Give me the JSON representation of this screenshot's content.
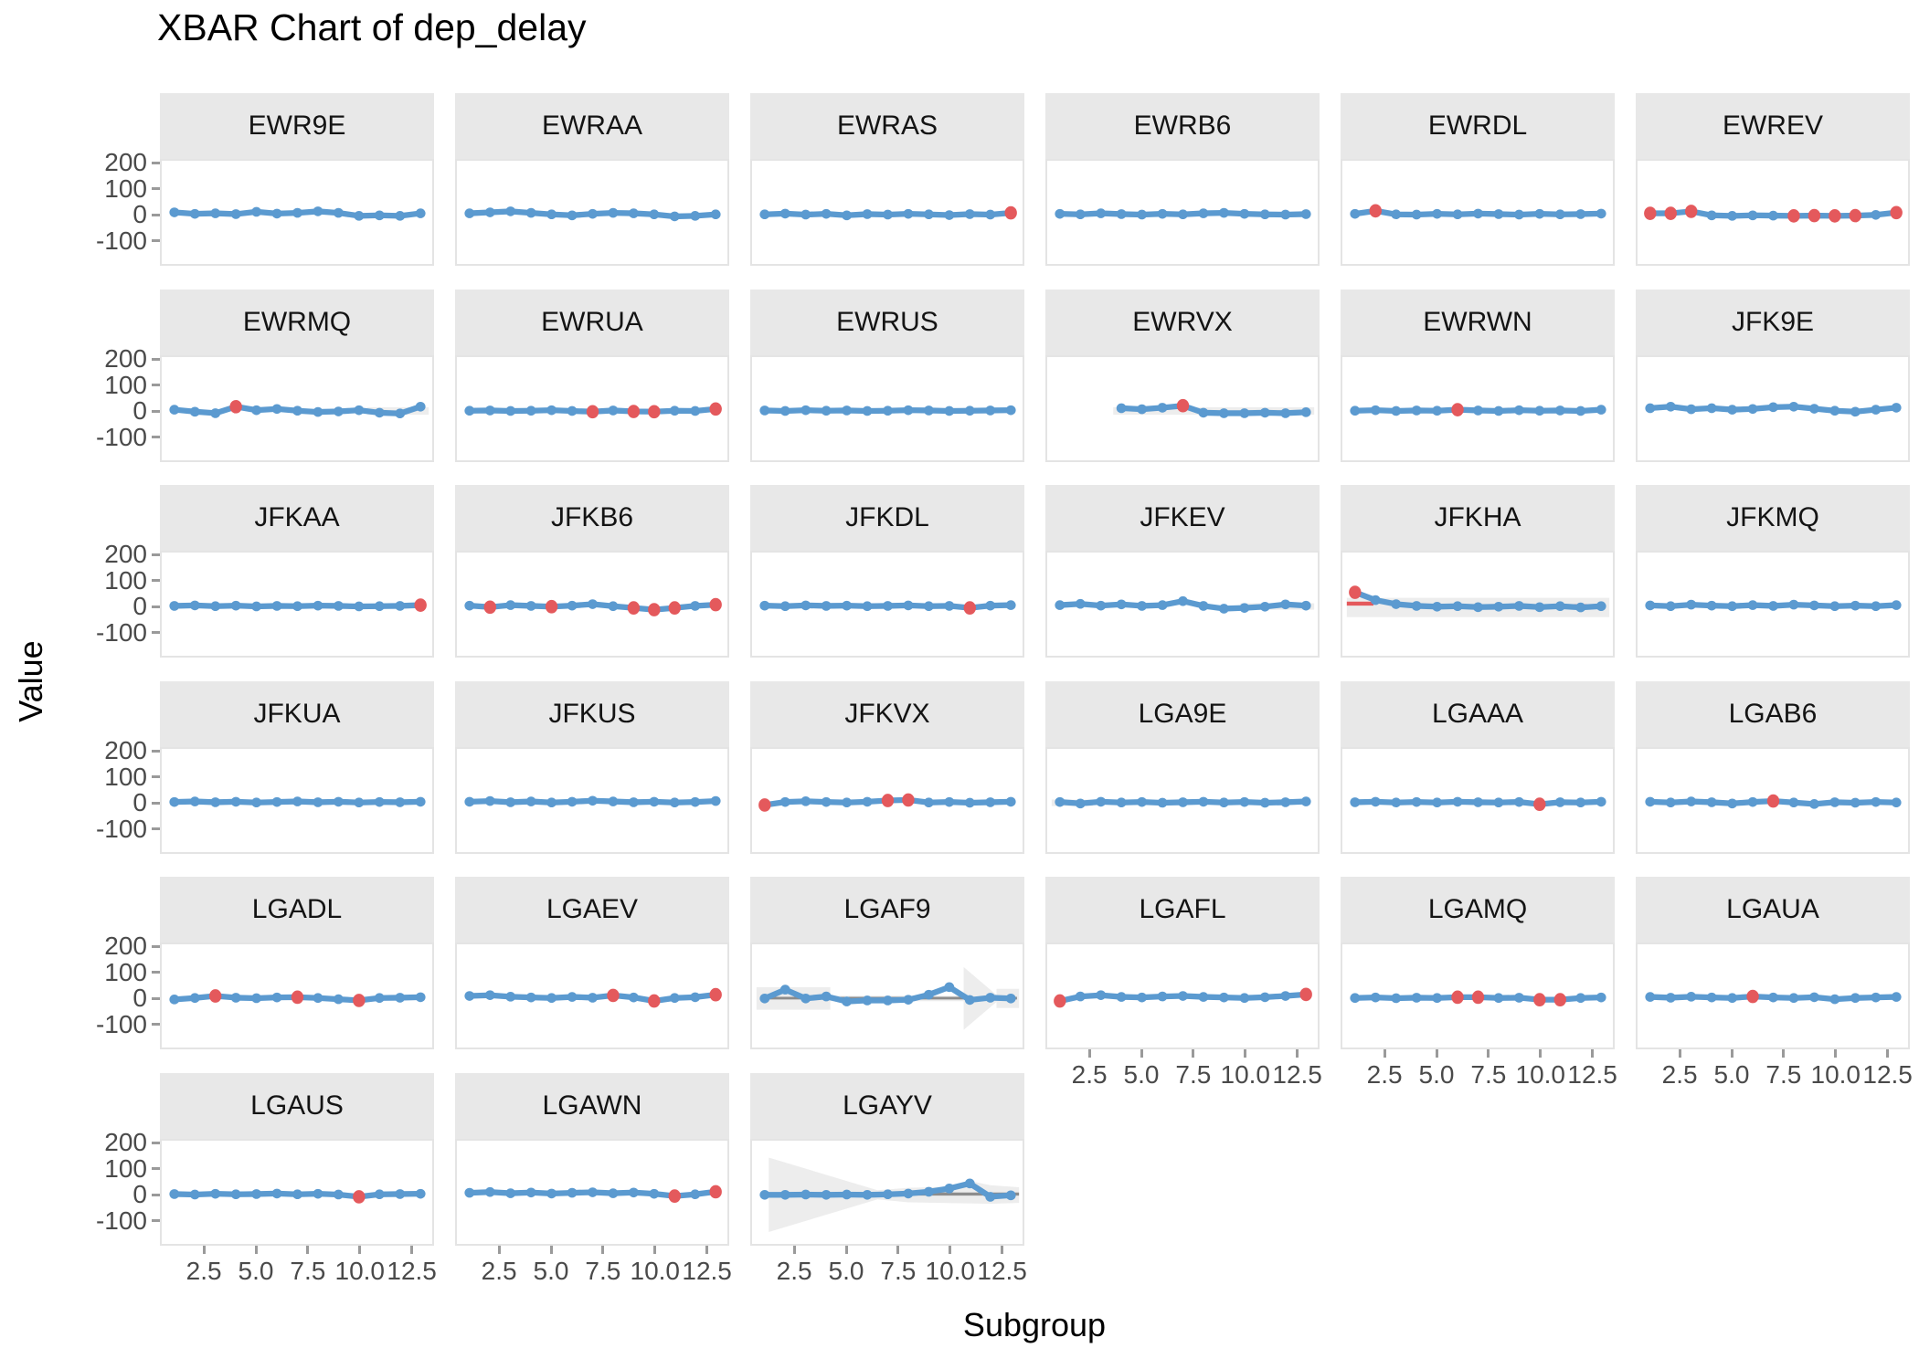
{
  "title": "XBAR Chart of dep_delay",
  "colors": {
    "series_line": "#5B9AD0",
    "point": "#5B9AD0",
    "violation_point": "#E4595C",
    "control_band": "#EDEDED",
    "center_line": "#8C8C8C",
    "strip_bg": "#E8E8E8",
    "panel_border": "#E4E4E4",
    "axis_text": "#4A4A4A",
    "tick_mark": "#9A9A9A"
  },
  "chart_data": {
    "type": "line",
    "title": "XBAR Chart of dep_delay",
    "xlabel": "Subgroup",
    "ylabel": "Value",
    "x_ticks": [
      2.5,
      5.0,
      7.5,
      10.0,
      12.5
    ],
    "y_ticks": [
      200,
      100,
      0,
      -100
    ],
    "xlim": [
      0.4,
      13.6
    ],
    "ylim": [
      -195,
      215
    ],
    "grid": "off",
    "legend": "none",
    "facet_layout": {
      "ncol": 6,
      "nrow": 6
    },
    "facets": [
      {
        "label": "EWR9E",
        "s0": 1,
        "values": [
          10,
          4,
          6,
          3,
          12,
          5,
          8,
          14,
          8,
          -4,
          -2,
          -4,
          6
        ],
        "red": []
      },
      {
        "label": "EWRAA",
        "s0": 1,
        "values": [
          6,
          10,
          14,
          8,
          2,
          -2,
          4,
          8,
          6,
          2,
          -6,
          -4,
          2
        ],
        "red": []
      },
      {
        "label": "EWRAS",
        "s0": 1,
        "values": [
          2,
          5,
          1,
          4,
          -2,
          3,
          1,
          4,
          2,
          -1,
          3,
          1,
          8
        ],
        "red": [
          13
        ]
      },
      {
        "label": "EWRB6",
        "s0": 1,
        "values": [
          4,
          2,
          6,
          3,
          1,
          4,
          2,
          6,
          8,
          4,
          2,
          1,
          3
        ],
        "red": []
      },
      {
        "label": "EWRDL",
        "s0": 1,
        "values": [
          4,
          16,
          2,
          1,
          4,
          2,
          5,
          3,
          1,
          4,
          2,
          3,
          5
        ],
        "red": [
          2
        ]
      },
      {
        "label": "EWREV",
        "s0": 1,
        "values": [
          6,
          6,
          14,
          -2,
          -4,
          -2,
          -3,
          -4,
          -3,
          -4,
          -3,
          0,
          9
        ],
        "red": [
          1,
          2,
          3,
          8,
          9,
          10,
          11,
          13
        ]
      },
      {
        "label": "EWRMQ",
        "s0": 1,
        "values": [
          6,
          -2,
          -8,
          18,
          4,
          9,
          2,
          -3,
          -1,
          4,
          -6,
          -9,
          18
        ],
        "red": [
          4
        ],
        "bands": [
          [
            [
              10.4,
              16
            ],
            [
              13.4,
              16
            ],
            [
              13.4,
              -14
            ],
            [
              10.4,
              -14
            ]
          ]
        ]
      },
      {
        "label": "EWRUA",
        "s0": 1,
        "values": [
          2,
          3,
          1,
          2,
          4,
          1,
          -2,
          3,
          -1,
          -2,
          2,
          1,
          9
        ],
        "red": [
          7,
          9,
          10,
          13
        ]
      },
      {
        "label": "EWRUS",
        "s0": 1,
        "values": [
          3,
          1,
          4,
          2,
          3,
          1,
          2,
          4,
          3,
          1,
          2,
          3,
          4
        ],
        "red": []
      },
      {
        "label": "EWRVX",
        "s0": 4,
        "values": [
          12,
          8,
          14,
          22,
          -6,
          -8,
          -8,
          -6,
          -8,
          -4
        ],
        "red": [
          4
        ],
        "bands": [
          [
            [
              3.6,
              16
            ],
            [
              13.4,
              16
            ],
            [
              13.4,
              -14
            ],
            [
              3.6,
              -14
            ]
          ]
        ]
      },
      {
        "label": "EWRWN",
        "s0": 1,
        "values": [
          2,
          4,
          1,
          3,
          2,
          6,
          3,
          1,
          4,
          2,
          3,
          1,
          6
        ],
        "red": [
          6
        ]
      },
      {
        "label": "JFK9E",
        "s0": 1,
        "values": [
          12,
          18,
          8,
          12,
          6,
          9,
          16,
          18,
          10,
          2,
          -2,
          6,
          14
        ],
        "red": []
      },
      {
        "label": "JFKAA",
        "s0": 1,
        "values": [
          3,
          5,
          2,
          4,
          1,
          3,
          2,
          4,
          3,
          1,
          2,
          3,
          6
        ],
        "red": [
          13
        ]
      },
      {
        "label": "JFKB6",
        "s0": 1,
        "values": [
          4,
          -2,
          6,
          3,
          0,
          4,
          10,
          2,
          -5,
          -12,
          -5,
          3,
          8
        ],
        "red": [
          2,
          5,
          9,
          10,
          11,
          13
        ]
      },
      {
        "label": "JFKDL",
        "s0": 1,
        "values": [
          4,
          2,
          5,
          3,
          4,
          2,
          3,
          5,
          2,
          3,
          -5,
          4,
          6
        ],
        "red": [
          11
        ]
      },
      {
        "label": "JFKEV",
        "s0": 1,
        "values": [
          6,
          11,
          4,
          9,
          3,
          6,
          22,
          3,
          -8,
          -5,
          0,
          9,
          4
        ],
        "red": [],
        "bands": [
          [
            [
              9.8,
              14
            ],
            [
              13.4,
              14
            ],
            [
              13.4,
              -12
            ],
            [
              9.8,
              -12
            ]
          ]
        ]
      },
      {
        "label": "JFKHA",
        "s0": 1,
        "values": [
          57,
          26,
          10,
          3,
          0,
          2,
          -2,
          0,
          3,
          -2,
          2,
          -3,
          2
        ],
        "red": [
          1
        ],
        "bands": [
          [
            [
              0.6,
              35
            ],
            [
              13.4,
              35
            ],
            [
              13.4,
              -42
            ],
            [
              0.6,
              -42
            ]
          ]
        ],
        "lines": [
          {
            "s1": 0.6,
            "s2": 1.9,
            "v": 12,
            "c": "red",
            "w": 4.5
          },
          {
            "s1": 9.4,
            "s2": 12.6,
            "v": 2,
            "c": "red",
            "w": 4.5
          }
        ]
      },
      {
        "label": "JFKMQ",
        "s0": 1,
        "values": [
          5,
          2,
          8,
          4,
          2,
          6,
          3,
          8,
          5,
          2,
          4,
          2,
          6
        ],
        "red": []
      },
      {
        "label": "JFKUA",
        "s0": 1,
        "values": [
          4,
          6,
          3,
          5,
          2,
          4,
          6,
          3,
          5,
          2,
          4,
          3,
          5
        ],
        "red": []
      },
      {
        "label": "JFKUS",
        "s0": 1,
        "values": [
          5,
          8,
          3,
          6,
          2,
          5,
          9,
          6,
          3,
          5,
          2,
          4,
          8
        ],
        "red": []
      },
      {
        "label": "JFKVX",
        "s0": 1,
        "values": [
          -8,
          4,
          7,
          4,
          2,
          5,
          10,
          12,
          2,
          4,
          1,
          3,
          5
        ],
        "red": [
          1,
          7,
          8
        ]
      },
      {
        "label": "LGA9E",
        "s0": 1,
        "values": [
          4,
          -2,
          5,
          2,
          4,
          1,
          3,
          5,
          2,
          4,
          1,
          3,
          6
        ],
        "red": [],
        "bands": [
          [
            [
              0.6,
              14
            ],
            [
              2.6,
              14
            ],
            [
              2.6,
              -12
            ],
            [
              0.6,
              -12
            ]
          ]
        ]
      },
      {
        "label": "LGAAA",
        "s0": 1,
        "values": [
          3,
          5,
          2,
          4,
          2,
          5,
          3,
          2,
          4,
          -5,
          3,
          2,
          5
        ],
        "red": [
          10
        ]
      },
      {
        "label": "LGAB6",
        "s0": 1,
        "values": [
          5,
          2,
          6,
          3,
          -2,
          4,
          8,
          2,
          -4,
          3,
          1,
          4,
          2
        ],
        "red": [
          7
        ]
      },
      {
        "label": "LGADL",
        "s0": 1,
        "values": [
          -4,
          2,
          10,
          3,
          1,
          4,
          5,
          2,
          -3,
          -8,
          2,
          3,
          5
        ],
        "red": [
          3,
          7,
          10
        ]
      },
      {
        "label": "LGAEV",
        "s0": 1,
        "values": [
          10,
          13,
          7,
          4,
          2,
          6,
          3,
          12,
          4,
          -10,
          2,
          5,
          15
        ],
        "red": [
          8,
          10,
          13
        ]
      },
      {
        "label": "LGAF9",
        "s0": 1,
        "values": [
          0,
          35,
          0,
          8,
          -12,
          -8,
          -8,
          -5,
          15,
          45,
          -6,
          3,
          0
        ],
        "red": [],
        "bands": [
          [
            [
              0.6,
              45
            ],
            [
              4.2,
              45
            ],
            [
              4.2,
              -45
            ],
            [
              0.6,
              -45
            ]
          ],
          [
            [
              4.2,
              11
            ],
            [
              10.7,
              11
            ],
            [
              10.7,
              -11
            ],
            [
              4.2,
              -11
            ]
          ],
          [
            [
              10.7,
              125
            ],
            [
              12.5,
              0
            ],
            [
              10.7,
              -125
            ]
          ],
          [
            [
              12.3,
              38
            ],
            [
              13.4,
              38
            ],
            [
              13.4,
              -38
            ],
            [
              12.3,
              -38
            ]
          ]
        ],
        "lines": [
          {
            "s1": 0.8,
            "s2": 13.3,
            "v": 1,
            "c": "gray",
            "w": 3
          }
        ]
      },
      {
        "label": "LGAFL",
        "s0": 1,
        "values": [
          -10,
          8,
          13,
          6,
          4,
          8,
          10,
          6,
          4,
          2,
          5,
          10,
          16
        ],
        "red": [
          1,
          13
        ]
      },
      {
        "label": "LGAMQ",
        "s0": 1,
        "values": [
          2,
          4,
          1,
          3,
          2,
          5,
          5,
          2,
          3,
          -5,
          -5,
          2,
          4
        ],
        "red": [
          6,
          7,
          10,
          11
        ]
      },
      {
        "label": "LGAUA",
        "s0": 1,
        "values": [
          6,
          3,
          7,
          4,
          2,
          8,
          4,
          2,
          5,
          -3,
          2,
          4,
          6
        ],
        "red": [
          6
        ]
      },
      {
        "label": "LGAUS",
        "s0": 1,
        "values": [
          3,
          1,
          4,
          2,
          3,
          5,
          2,
          4,
          1,
          -8,
          2,
          3,
          4
        ],
        "red": [
          10
        ]
      },
      {
        "label": "LGAWN",
        "s0": 1,
        "values": [
          8,
          11,
          6,
          9,
          5,
          8,
          10,
          6,
          9,
          4,
          -5,
          2,
          12
        ],
        "red": [
          11,
          13
        ]
      },
      {
        "label": "LGAYV",
        "s0": 1,
        "values": [
          0,
          0,
          1,
          0,
          1,
          0,
          2,
          5,
          12,
          25,
          45,
          -8,
          -2
        ],
        "red": [],
        "bands": [
          [
            [
              1.2,
              148
            ],
            [
              6.5,
              18
            ],
            [
              8,
              28
            ],
            [
              10,
              32
            ],
            [
              11,
              55
            ],
            [
              12,
              38
            ],
            [
              13.4,
              30
            ],
            [
              13.4,
              -32
            ],
            [
              12,
              -36
            ],
            [
              8,
              -30
            ],
            [
              6.5,
              -18
            ],
            [
              1.2,
              -148
            ]
          ]
        ],
        "lines": [
          {
            "s1": 0.8,
            "s2": 13.4,
            "v": 3,
            "c": "gray",
            "w": 3.5
          }
        ]
      }
    ]
  }
}
